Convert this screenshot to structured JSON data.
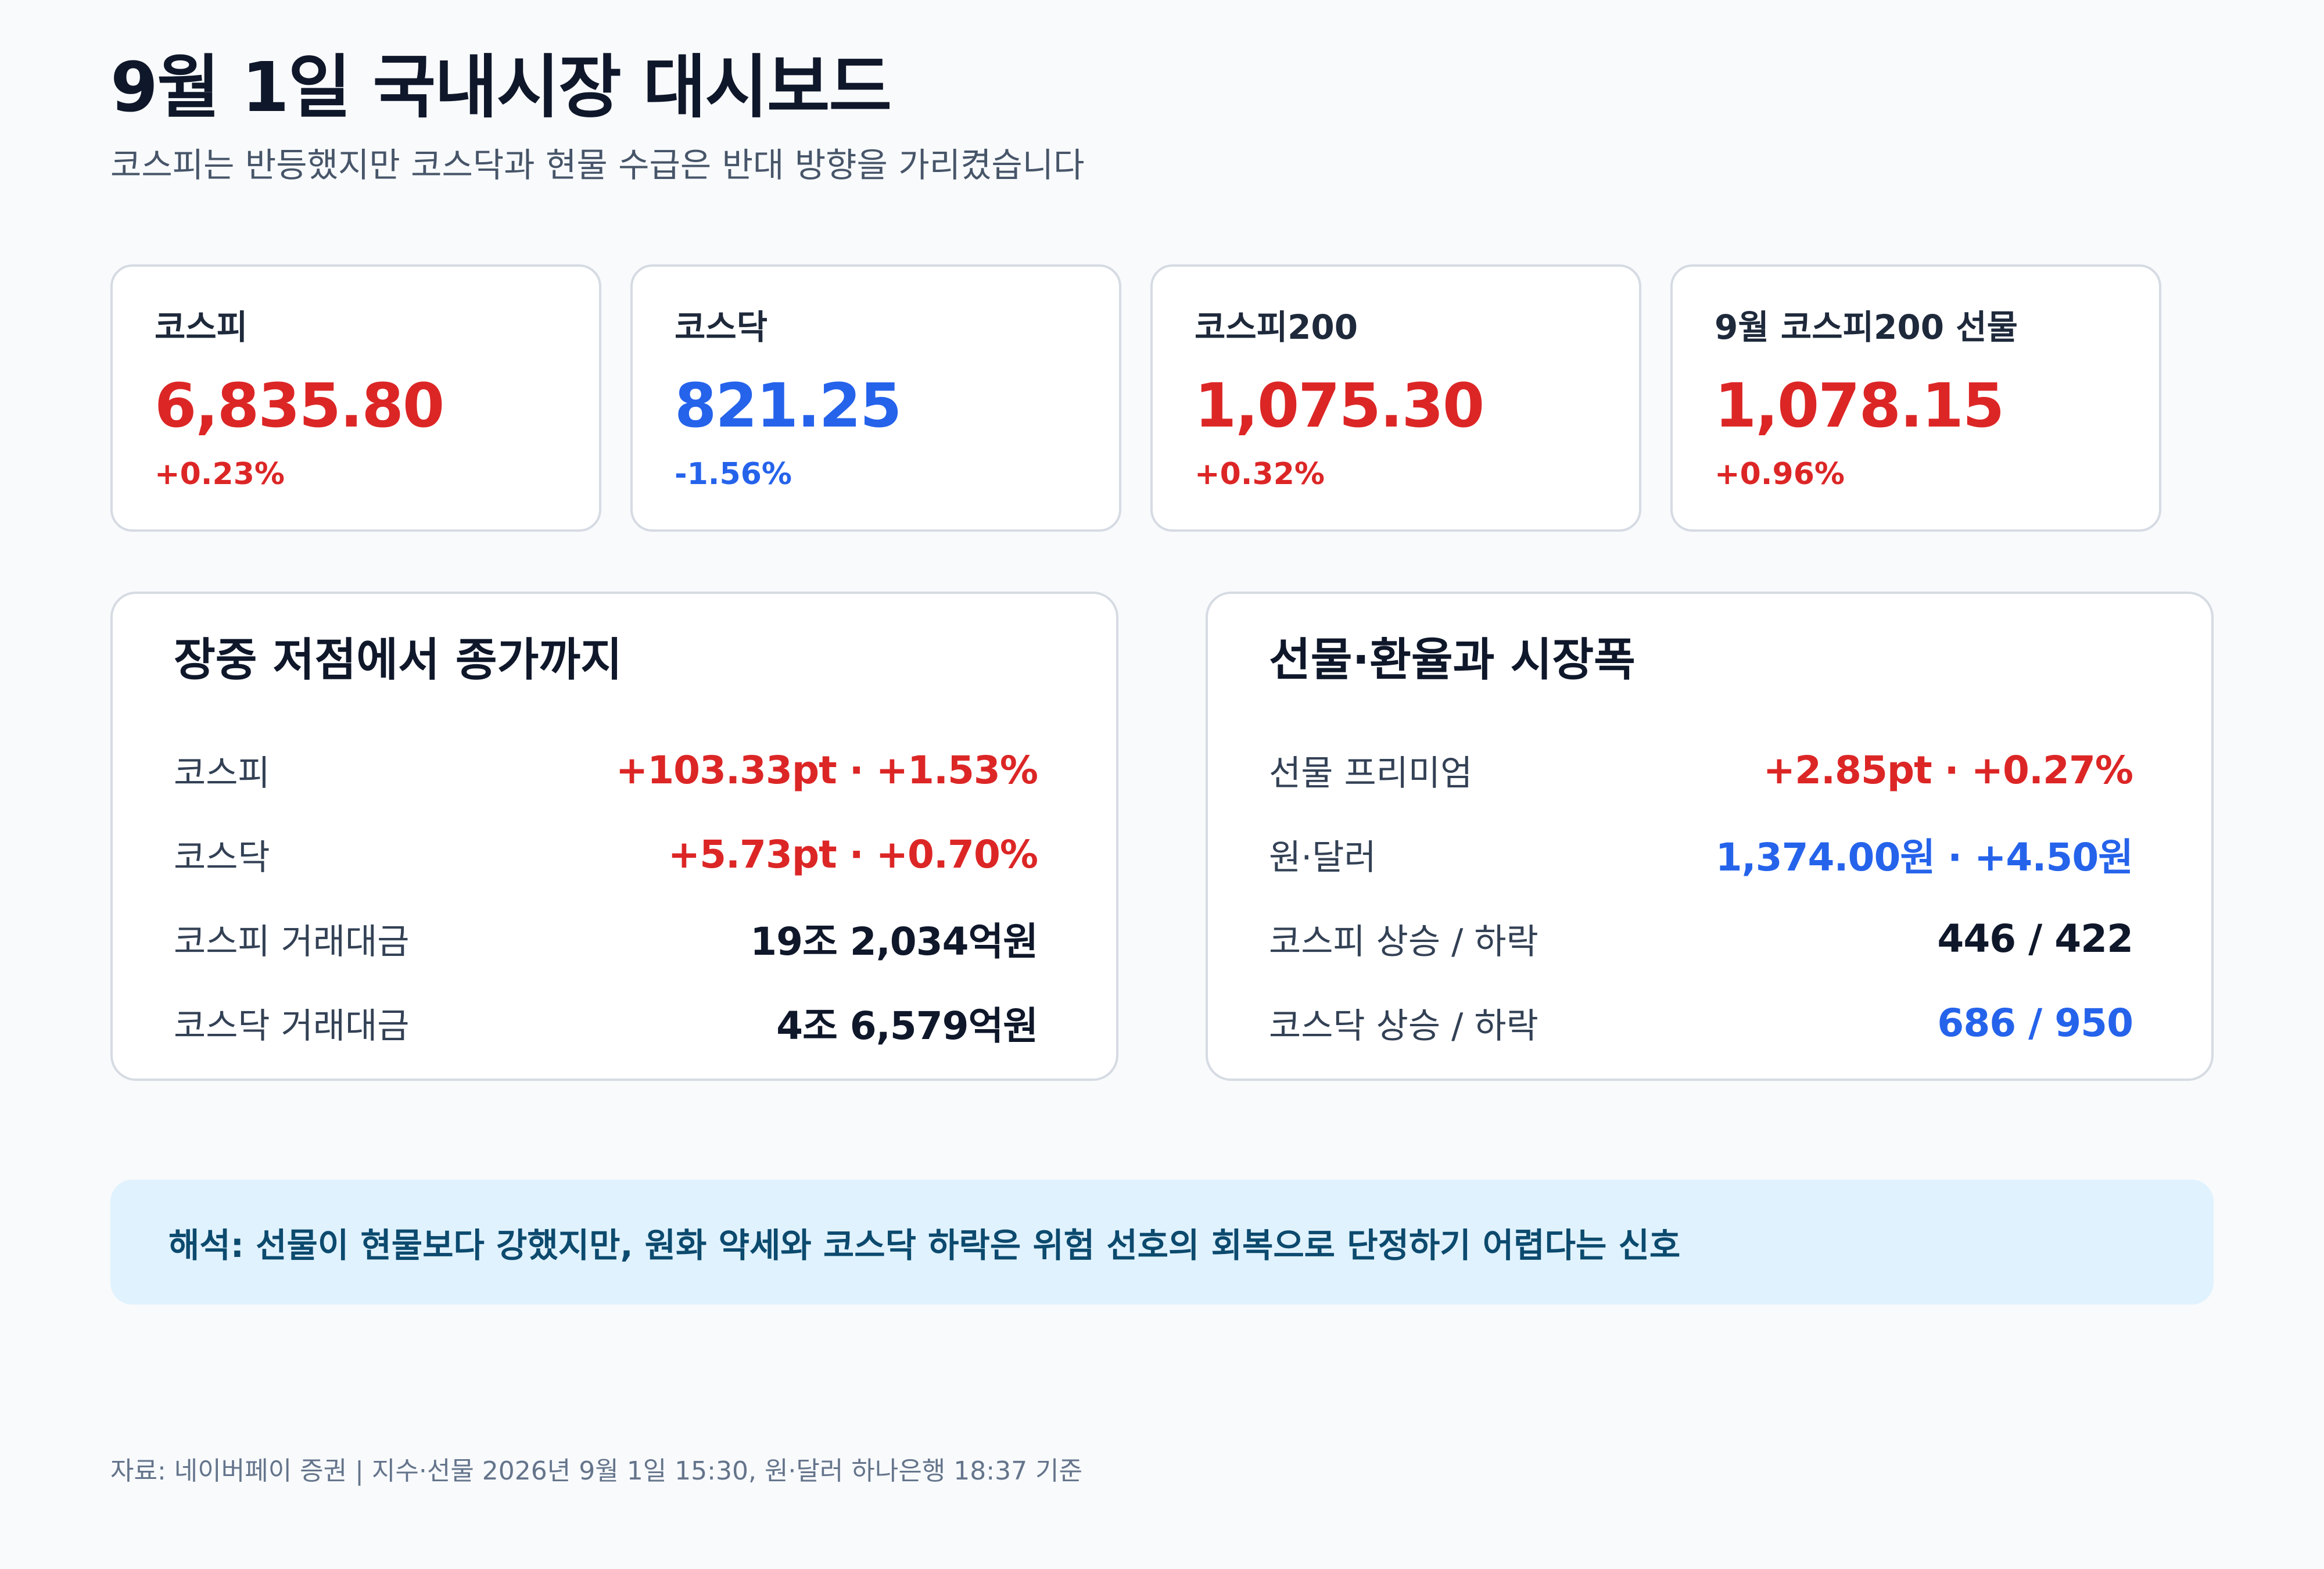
{
  "header": {
    "title": "9월 1일 국내시장 대시보드",
    "subtitle": "코스피는 반등했지만 코스닥과 현물 수급은 반대 방향을 가리켰습니다"
  },
  "kpis": [
    {
      "label": "코스피",
      "value": "6,835.80",
      "change": "+0.23%",
      "direction": "up"
    },
    {
      "label": "코스닥",
      "value": "821.25",
      "change": "-1.56%",
      "direction": "down"
    },
    {
      "label": "코스피200",
      "value": "1,075.30",
      "change": "+0.32%",
      "direction": "up"
    },
    {
      "label": "9월 코스피200 선물",
      "value": "1,078.15",
      "change": "+0.96%",
      "direction": "up"
    }
  ],
  "panel_intraday": {
    "title": "장중 저점에서 종가까지",
    "rows": [
      {
        "label": "코스피",
        "value": "+103.33pt · +1.53%",
        "tone": "up"
      },
      {
        "label": "코스닥",
        "value": "+5.73pt · +0.70%",
        "tone": "up"
      },
      {
        "label": "코스피 거래대금",
        "value": "19조 2,034억원",
        "tone": "neutral"
      },
      {
        "label": "코스닥 거래대금",
        "value": "4조 6,579억원",
        "tone": "neutral"
      }
    ]
  },
  "panel_futures": {
    "title": "선물·환율과 시장폭",
    "rows": [
      {
        "label": "선물 프리미엄",
        "value": "+2.85pt · +0.27%",
        "tone": "up"
      },
      {
        "label": "원·달러",
        "value": "1,374.00원 · +4.50원",
        "tone": "down"
      },
      {
        "label": "코스피 상승 / 하락",
        "value": "446 / 422",
        "tone": "neutral"
      },
      {
        "label": "코스닥 상승 / 하락",
        "value": "686 / 950",
        "tone": "down"
      }
    ]
  },
  "note": {
    "text": "해석: 선물이 현물보다 강했지만, 원화 약세와 코스닥 하락은 위험 선호의 회복으로 단정하기 어렵다는 신호"
  },
  "footer": {
    "source": "자료: 네이버페이 증권 | 지수·선물 2026년 9월 1일 15:30, 원·달러 하나은행 18:37 기준"
  },
  "colors": {
    "up": "#dc2626",
    "down": "#2563eb",
    "neutral": "#0f172a",
    "note_bg": "#e0f2fe",
    "note_text": "#0c4a6e"
  }
}
